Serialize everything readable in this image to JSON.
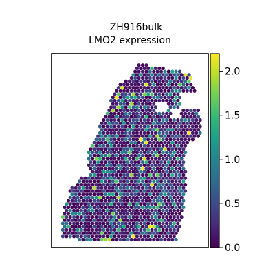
{
  "chart_data": {
    "type": "scatter",
    "subtype": "spatial-hexbin",
    "title_line1": "ZH916bulk",
    "title_line2": "LMO2 expression",
    "xlabel": "",
    "ylabel": "",
    "colorbar": {
      "colormap": "viridis",
      "range": [
        0.0,
        2.2
      ],
      "ticks": [
        0.0,
        0.5,
        1.0,
        1.5,
        2.0
      ],
      "tick_labels": [
        "0.0",
        "0.5",
        "1.0",
        "1.5",
        "2.0"
      ]
    },
    "colormap_stops": [
      "#440154",
      "#482878",
      "#3e4989",
      "#31688e",
      "#26828e",
      "#1f9e89",
      "#35b779",
      "#6ece58",
      "#b5de2b",
      "#fde725"
    ],
    "value_distribution_note": "mostly low (0.0-0.5), sparse highs up to ~2.2"
  }
}
